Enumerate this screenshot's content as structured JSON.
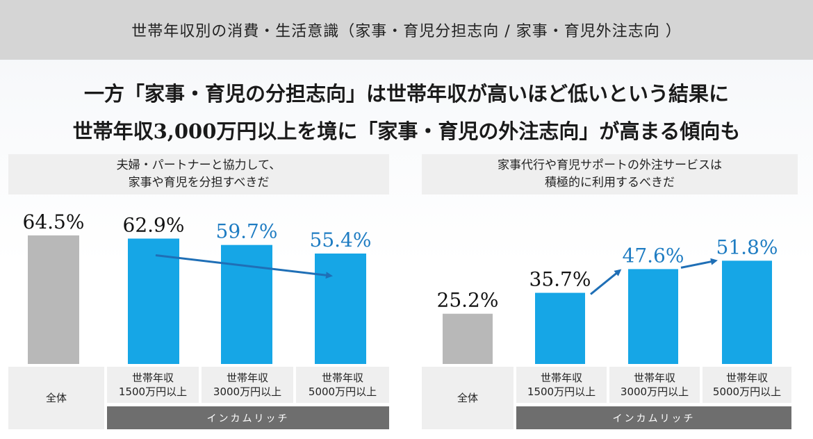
{
  "header": {
    "title": "世帯年収別の消費・生活意識（家事・育児分担志向 / 家事・育児外注志向 ）"
  },
  "headline": {
    "line1": "一方「家事・育児の分担志向」は世帯年収が高いほど低いという結果に",
    "line2": "世帯年収3,000万円以上を境に「家事・育児の外注志向」が高まる傾向も"
  },
  "colors": {
    "overall": "#b8b8b8",
    "income": "#16a6e6",
    "highlight_text": "#1e7cc2",
    "arrow": "#1f6fb6"
  },
  "chart_data": [
    {
      "type": "bar",
      "title_lines": [
        "夫婦・パートナーと協力して、",
        "家事や育児を分担すべきだ"
      ],
      "categories": [
        [
          "全体"
        ],
        [
          "世帯年収",
          "1500万円以上"
        ],
        [
          "世帯年収",
          "3000万円以上"
        ],
        [
          "世帯年収",
          "5000万円以上"
        ]
      ],
      "values": [
        64.5,
        62.9,
        59.7,
        55.4
      ],
      "value_labels": [
        "64.5%",
        "62.9%",
        "59.7%",
        "55.4%"
      ],
      "highlighted": [
        false,
        false,
        true,
        true
      ],
      "group_label": "インカムリッチ",
      "ylim": [
        0,
        100
      ]
    },
    {
      "type": "bar",
      "title_lines": [
        "家事代行や育児サポートの外注サービスは",
        "積極的に利用するべきだ"
      ],
      "categories": [
        [
          "全体"
        ],
        [
          "世帯年収",
          "1500万円以上"
        ],
        [
          "世帯年収",
          "3000万円以上"
        ],
        [
          "世帯年収",
          "5000万円以上"
        ]
      ],
      "values": [
        25.2,
        35.7,
        47.6,
        51.8
      ],
      "value_labels": [
        "25.2%",
        "35.7%",
        "47.6%",
        "51.8%"
      ],
      "highlighted": [
        false,
        false,
        true,
        true
      ],
      "group_label": "インカムリッチ",
      "ylim": [
        0,
        100
      ]
    }
  ]
}
